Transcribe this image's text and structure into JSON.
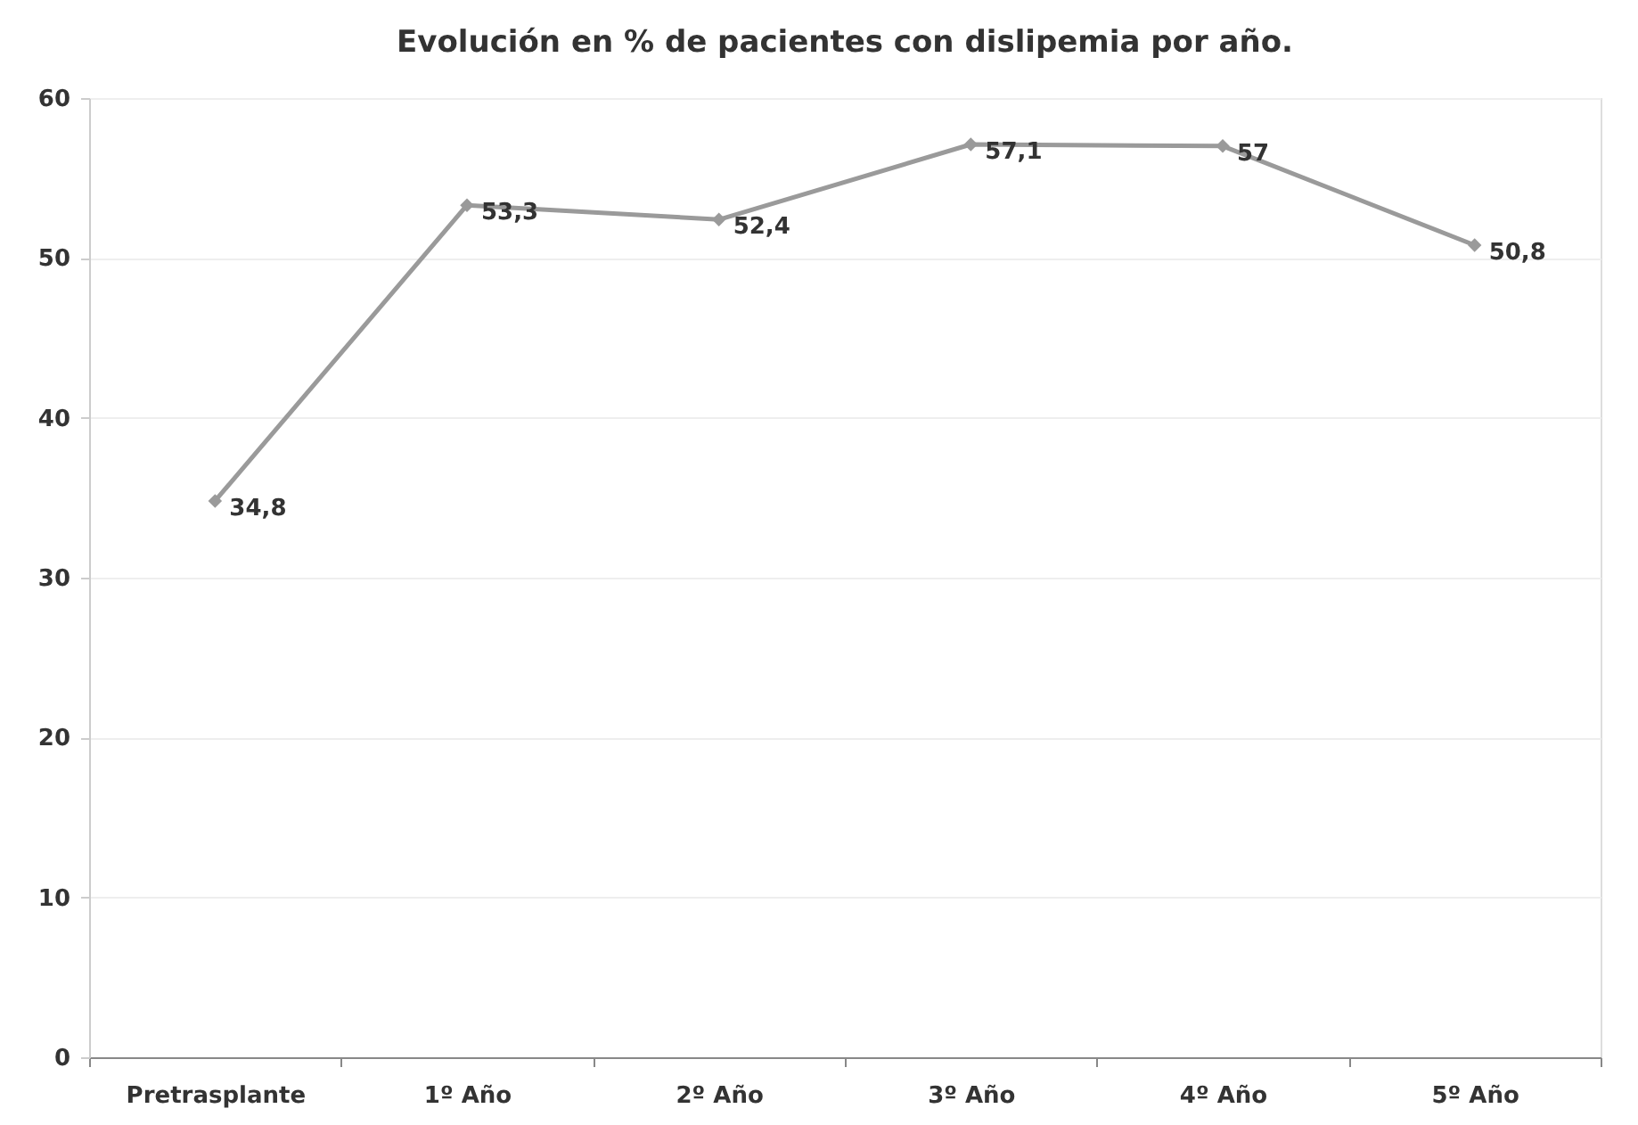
{
  "chart_data": {
    "type": "line",
    "title": "Evolución en % de pacientes con dislipemia  por año.",
    "categories": [
      "Pretrasplante",
      "1º Año",
      "2º Año",
      "3º Año",
      "4º Año",
      "5º Año"
    ],
    "series": [
      {
        "color": "#9a9a9a",
        "values": [
          34.8,
          53.3,
          52.4,
          57.1,
          57,
          50.8
        ],
        "value_labels": [
          "34,8",
          "53,3",
          "52,4",
          "57,1",
          "57",
          "50,8"
        ]
      }
    ],
    "ylim": [
      0,
      60
    ],
    "yticks": [
      0,
      10,
      20,
      30,
      40,
      50,
      60
    ],
    "grid": "y",
    "marker": "diamond",
    "line_style": "solid"
  }
}
